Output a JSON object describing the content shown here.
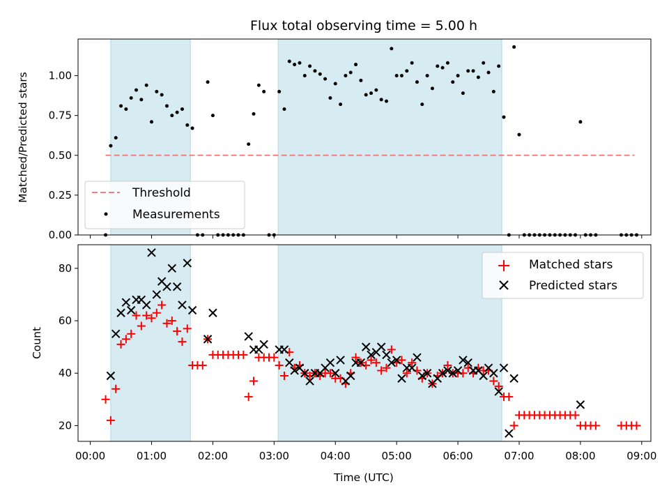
{
  "title": "Flux total observing time = 5.00 h",
  "xlabel": "Time (UTC)",
  "x_ticks": [
    "00:00",
    "01:00",
    "02:00",
    "03:00",
    "04:00",
    "05:00",
    "06:00",
    "07:00",
    "08:00",
    "09:00"
  ],
  "colors": {
    "shade": "#add8e6",
    "threshold": "#f08080",
    "matched": "#ff0000",
    "predicted": "#000000",
    "measurement": "#000000"
  },
  "chart_data": [
    {
      "type": "scatter",
      "ylabel": "Matched/Predicted stars",
      "ylim": [
        0,
        1.23
      ],
      "y_ticks": [
        "0.00",
        "0.25",
        "0.50",
        "0.75",
        "1.00"
      ],
      "xlim_hours": [
        -0.2,
        9.15
      ],
      "shaded_intervals": [
        [
          "00:20",
          "01:38"
        ],
        [
          "03:04",
          "06:43"
        ]
      ],
      "threshold": {
        "name": "Threshold",
        "value": 0.5,
        "x_range": [
          "00:15",
          "08:53"
        ]
      },
      "series": [
        {
          "name": "Measurements",
          "x": [
            "00:15",
            "00:20",
            "00:25",
            "00:30",
            "00:35",
            "00:40",
            "00:45",
            "00:50",
            "00:55",
            "01:00",
            "01:05",
            "01:10",
            "01:15",
            "01:20",
            "01:25",
            "01:30",
            "01:35",
            "01:40",
            "01:45",
            "01:50",
            "01:55",
            "02:00",
            "02:05",
            "02:10",
            "02:15",
            "02:20",
            "02:25",
            "02:30",
            "02:35",
            "02:40",
            "02:45",
            "02:50",
            "02:55",
            "03:00",
            "03:05",
            "03:10",
            "03:15",
            "03:20",
            "03:25",
            "03:30",
            "03:35",
            "03:40",
            "03:45",
            "03:50",
            "03:55",
            "04:00",
            "04:05",
            "04:10",
            "04:15",
            "04:20",
            "04:25",
            "04:30",
            "04:35",
            "04:40",
            "04:45",
            "04:50",
            "04:55",
            "05:00",
            "05:05",
            "05:10",
            "05:15",
            "05:20",
            "05:25",
            "05:30",
            "05:35",
            "05:40",
            "05:45",
            "05:50",
            "05:55",
            "06:00",
            "06:05",
            "06:10",
            "06:15",
            "06:20",
            "06:25",
            "06:30",
            "06:35",
            "06:40",
            "06:45",
            "06:50",
            "06:55",
            "07:00",
            "07:05",
            "07:10",
            "07:15",
            "07:20",
            "07:25",
            "07:30",
            "07:35",
            "07:40",
            "07:45",
            "07:50",
            "07:55",
            "08:00",
            "08:05",
            "08:10",
            "08:15",
            "08:40",
            "08:45",
            "08:50",
            "08:55"
          ],
          "y": [
            0.0,
            0.56,
            0.61,
            0.81,
            0.79,
            0.86,
            0.91,
            0.85,
            0.94,
            0.71,
            0.9,
            0.88,
            0.81,
            0.75,
            0.77,
            0.79,
            0.69,
            0.67,
            0.0,
            0.0,
            0.96,
            0.75,
            0.0,
            0.0,
            0.0,
            0.0,
            0.0,
            0.0,
            0.57,
            0.76,
            0.94,
            0.9,
            0.0,
            0.0,
            0.9,
            0.79,
            1.09,
            1.07,
            1.08,
            1.0,
            1.06,
            1.03,
            1.01,
            0.98,
            0.86,
            0.95,
            0.82,
            1.0,
            1.02,
            1.07,
            0.97,
            0.88,
            0.89,
            0.91,
            0.85,
            0.84,
            1.17,
            1.0,
            1.0,
            1.03,
            1.08,
            0.96,
            0.82,
            1.0,
            0.92,
            1.06,
            1.05,
            1.08,
            0.96,
            1.0,
            0.89,
            1.03,
            1.03,
            0.99,
            1.08,
            1.02,
            0.9,
            1.06,
            0.74,
            0.0,
            1.18,
            0.63,
            0.0,
            0.0,
            0.0,
            0.0,
            0.0,
            0.0,
            0.0,
            0.0,
            0.0,
            0.0,
            0.0,
            0.71,
            0.0,
            0.0,
            0.0,
            0.0,
            0.0,
            0.0,
            0.0
          ]
        }
      ]
    },
    {
      "type": "scatter",
      "ylabel": "Count",
      "ylim": [
        14,
        89
      ],
      "y_ticks": [
        "20",
        "40",
        "60",
        "80"
      ],
      "xlim_hours": [
        -0.2,
        9.15
      ],
      "shaded_intervals": [
        [
          "00:20",
          "01:38"
        ],
        [
          "03:04",
          "06:43"
        ]
      ],
      "series": [
        {
          "name": "Matched stars",
          "marker": "plus",
          "x": [
            "00:15",
            "00:20",
            "00:25",
            "00:30",
            "00:35",
            "00:40",
            "00:45",
            "00:50",
            "00:55",
            "01:00",
            "01:05",
            "01:10",
            "01:15",
            "01:20",
            "01:25",
            "01:30",
            "01:35",
            "01:40",
            "01:45",
            "01:50",
            "01:55",
            "02:00",
            "02:05",
            "02:10",
            "02:15",
            "02:20",
            "02:25",
            "02:30",
            "02:35",
            "02:40",
            "02:45",
            "02:50",
            "02:55",
            "03:00",
            "03:05",
            "03:10",
            "03:15",
            "03:20",
            "03:25",
            "03:30",
            "03:35",
            "03:40",
            "03:45",
            "03:50",
            "03:55",
            "04:00",
            "04:05",
            "04:10",
            "04:15",
            "04:20",
            "04:25",
            "04:30",
            "04:35",
            "04:40",
            "04:45",
            "04:50",
            "04:55",
            "05:00",
            "05:05",
            "05:10",
            "05:15",
            "05:20",
            "05:25",
            "05:30",
            "05:35",
            "05:40",
            "05:45",
            "05:50",
            "05:55",
            "06:00",
            "06:05",
            "06:10",
            "06:15",
            "06:20",
            "06:25",
            "06:30",
            "06:35",
            "06:40",
            "06:45",
            "06:50",
            "06:55",
            "07:00",
            "07:05",
            "07:10",
            "07:15",
            "07:20",
            "07:25",
            "07:30",
            "07:35",
            "07:40",
            "07:45",
            "07:50",
            "07:55",
            "08:00",
            "08:05",
            "08:10",
            "08:15",
            "08:40",
            "08:45",
            "08:50",
            "08:55"
          ],
          "y": [
            30,
            22,
            34,
            51,
            53,
            55,
            62,
            58,
            62,
            61,
            63,
            66,
            59,
            60,
            56,
            52,
            57,
            43,
            43,
            43,
            53,
            47,
            47,
            47,
            47,
            47,
            47,
            47,
            31,
            37,
            46,
            46,
            46,
            46,
            43,
            39,
            48,
            42,
            43,
            40,
            39,
            40,
            39,
            40,
            40,
            38,
            38,
            36,
            40,
            46,
            44,
            43,
            45,
            44,
            41,
            42,
            49,
            44,
            45,
            40,
            44,
            41,
            38,
            40,
            36,
            39,
            40,
            43,
            40,
            40,
            40,
            42,
            40,
            42,
            41,
            41,
            37,
            35,
            31,
            31,
            20,
            24,
            24,
            24,
            24,
            24,
            24,
            24,
            24,
            24,
            24,
            24,
            24,
            20,
            20,
            20,
            20,
            20,
            20,
            20,
            20
          ]
        },
        {
          "name": "Predicted stars",
          "marker": "cross",
          "x": [
            "00:20",
            "00:25",
            "00:30",
            "00:35",
            "00:40",
            "00:45",
            "00:50",
            "00:55",
            "01:00",
            "01:05",
            "01:10",
            "01:15",
            "01:20",
            "01:25",
            "01:30",
            "01:35",
            "01:40",
            "01:55",
            "02:00",
            "02:35",
            "02:40",
            "02:45",
            "02:50",
            "03:05",
            "03:10",
            "03:15",
            "03:20",
            "03:25",
            "03:30",
            "03:35",
            "03:40",
            "03:45",
            "03:50",
            "03:55",
            "04:00",
            "04:05",
            "04:10",
            "04:15",
            "04:20",
            "04:25",
            "04:30",
            "04:35",
            "04:40",
            "04:45",
            "04:50",
            "04:55",
            "05:00",
            "05:05",
            "05:10",
            "05:15",
            "05:20",
            "05:25",
            "05:30",
            "05:35",
            "05:40",
            "05:45",
            "05:50",
            "05:55",
            "06:00",
            "06:05",
            "06:10",
            "06:15",
            "06:20",
            "06:25",
            "06:30",
            "06:35",
            "06:40",
            "06:45",
            "06:50",
            "06:55",
            "08:00"
          ],
          "y": [
            39,
            55,
            63,
            67,
            64,
            68,
            68,
            66,
            86,
            70,
            75,
            73,
            80,
            73,
            66,
            82,
            64,
            53,
            63,
            54,
            49,
            49,
            51,
            49,
            49,
            44,
            41,
            42,
            40,
            37,
            40,
            40,
            42,
            44,
            40,
            45,
            37,
            39,
            44,
            44,
            50,
            47,
            48,
            50,
            47,
            44,
            45,
            38,
            42,
            42,
            46,
            39,
            40,
            36,
            38,
            40,
            41,
            40,
            41,
            45,
            44,
            41,
            41,
            39,
            42,
            40,
            33,
            42,
            17,
            38,
            28
          ]
        }
      ]
    }
  ]
}
